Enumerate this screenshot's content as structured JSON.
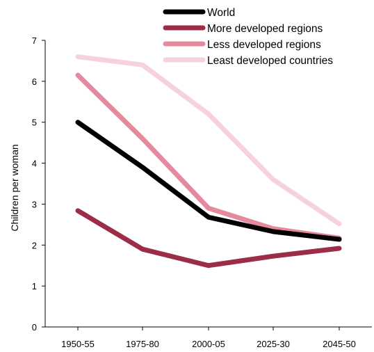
{
  "chart_data": {
    "type": "line",
    "title": "",
    "xlabel": "",
    "ylabel": "Children per woman",
    "categories": [
      "1950-55",
      "1975-80",
      "2000-05",
      "2025-30",
      "2045-50"
    ],
    "ylim": [
      0,
      7
    ],
    "yticks": [
      0,
      1,
      2,
      3,
      4,
      5,
      6,
      7
    ],
    "grid": false,
    "legend_position": "top-right",
    "series": [
      {
        "name": "World",
        "color": "#000000",
        "values": [
          5.0,
          3.9,
          2.68,
          2.33,
          2.14
        ]
      },
      {
        "name": "More developed regions",
        "color": "#9b2d46",
        "values": [
          2.84,
          1.9,
          1.5,
          1.73,
          1.92
        ]
      },
      {
        "name": "Less developed regions",
        "color": "#e58a9c",
        "values": [
          6.15,
          4.6,
          2.9,
          2.4,
          2.17
        ]
      },
      {
        "name": "Least developed countries",
        "color": "#f6d3da",
        "values": [
          6.6,
          6.4,
          5.2,
          3.6,
          2.52
        ]
      }
    ]
  }
}
